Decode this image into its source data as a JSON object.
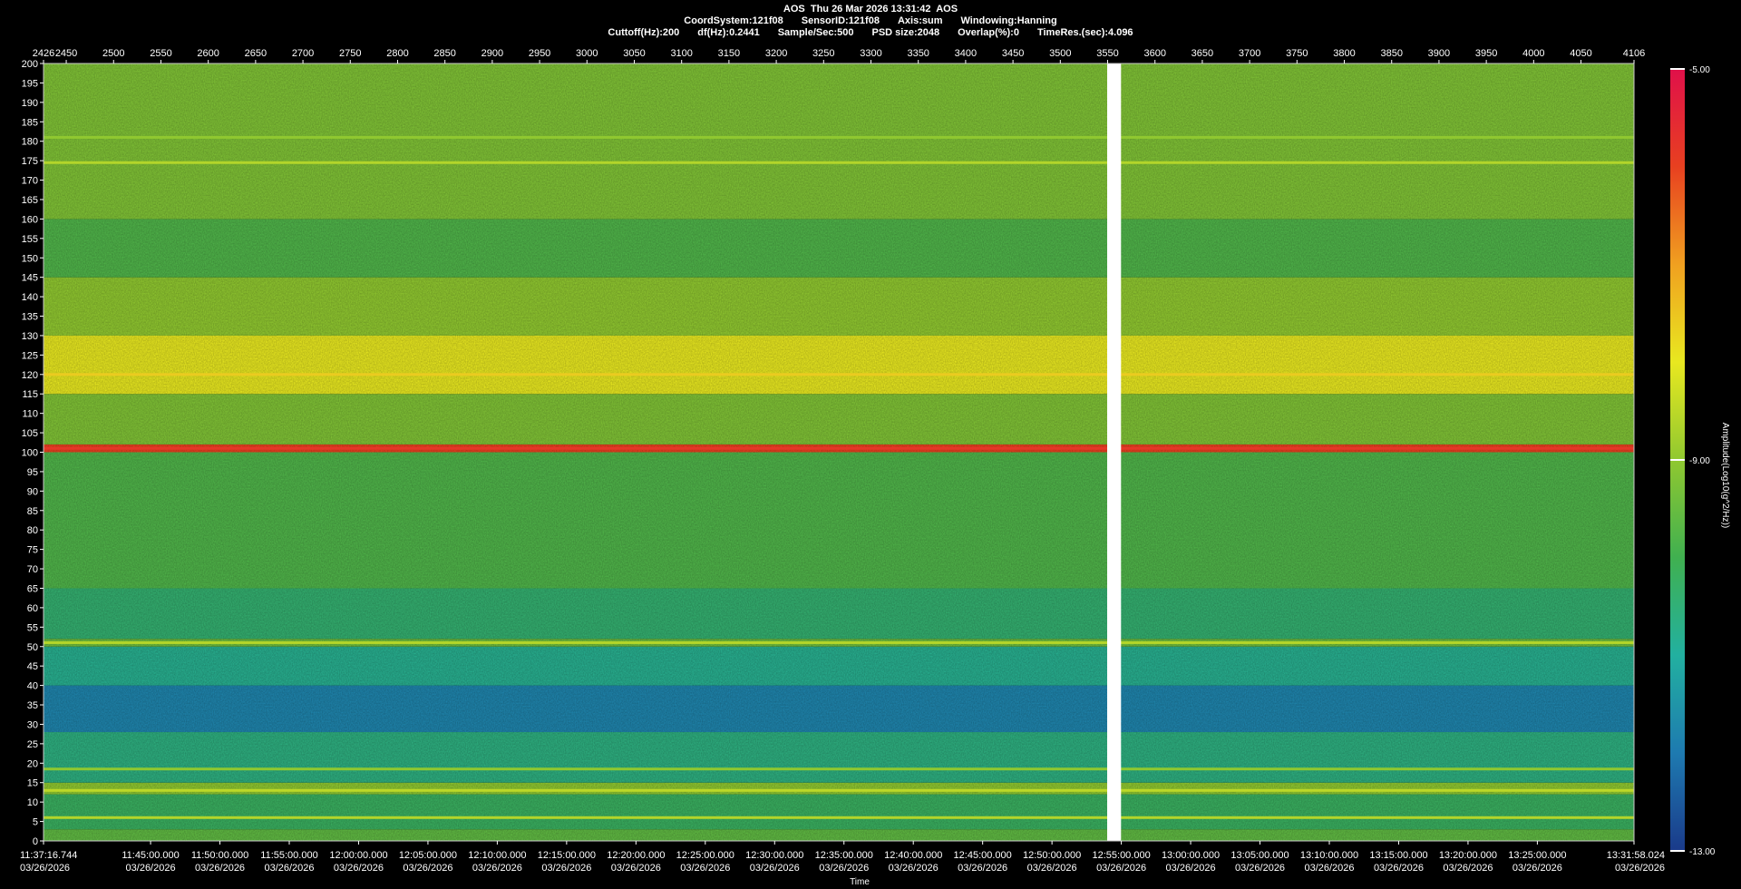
{
  "header": {
    "line1": "AOS  Thu 26 Mar 2026 13:31:42  AOS",
    "line2": [
      "CoordSystem:121f08",
      "SensorID:121f08",
      "Axis:sum",
      "Windowing:Hanning"
    ],
    "line3": [
      "Cuttoff(Hz):200",
      "df(Hz):0.2441",
      "Sample/Sec:500",
      "PSD size:2048",
      "Overlap(%):0",
      "TimeRes.(sec):4.096"
    ]
  },
  "chart_data": {
    "type": "heatmap",
    "title": "AOS  Thu 26 Mar 2026 13:31:42  AOS",
    "xlabel": "Time",
    "ylabel": "",
    "y_range": [
      0,
      200
    ],
    "y_ticks": [
      0,
      5,
      10,
      15,
      20,
      25,
      30,
      35,
      40,
      45,
      50,
      55,
      60,
      65,
      70,
      75,
      80,
      85,
      90,
      95,
      100,
      105,
      110,
      115,
      120,
      125,
      130,
      135,
      140,
      145,
      150,
      155,
      160,
      165,
      170,
      175,
      180,
      185,
      190,
      195,
      200
    ],
    "top_axis_range": [
      2426,
      4106
    ],
    "top_ticks": [
      "2426",
      "2450",
      "2500",
      "2550",
      "2600",
      "2650",
      "2700",
      "2750",
      "2800",
      "2850",
      "2900",
      "2950",
      "3000",
      "3050",
      "3100",
      "3150",
      "3200",
      "3250",
      "3300",
      "3350",
      "3400",
      "3450",
      "3500",
      "3550",
      "3600",
      "3650",
      "3700",
      "3750",
      "3800",
      "3850",
      "3900",
      "3950",
      "4000",
      "4050",
      "4106"
    ],
    "time_ticks": [
      {
        "time": "11:37:16.744",
        "date": "03/26/2026",
        "min": 0
      },
      {
        "time": "11:45:00.000",
        "date": "03/26/2026",
        "min": 7.72
      },
      {
        "time": "11:50:00.000",
        "date": "03/26/2026",
        "min": 12.72
      },
      {
        "time": "11:55:00.000",
        "date": "03/26/2026",
        "min": 17.72
      },
      {
        "time": "12:00:00.000",
        "date": "03/26/2026",
        "min": 22.72
      },
      {
        "time": "12:05:00.000",
        "date": "03/26/2026",
        "min": 27.72
      },
      {
        "time": "12:10:00.000",
        "date": "03/26/2026",
        "min": 32.72
      },
      {
        "time": "12:15:00.000",
        "date": "03/26/2026",
        "min": 37.72
      },
      {
        "time": "12:20:00.000",
        "date": "03/26/2026",
        "min": 42.72
      },
      {
        "time": "12:25:00.000",
        "date": "03/26/2026",
        "min": 47.72
      },
      {
        "time": "12:30:00.000",
        "date": "03/26/2026",
        "min": 52.72
      },
      {
        "time": "12:35:00.000",
        "date": "03/26/2026",
        "min": 57.72
      },
      {
        "time": "12:40:00.000",
        "date": "03/26/2026",
        "min": 62.72
      },
      {
        "time": "12:45:00.000",
        "date": "03/26/2026",
        "min": 67.72
      },
      {
        "time": "12:50:00.000",
        "date": "03/26/2026",
        "min": 72.72
      },
      {
        "time": "12:55:00.000",
        "date": "03/26/2026",
        "min": 77.72
      },
      {
        "time": "13:00:00.000",
        "date": "03/26/2026",
        "min": 82.72
      },
      {
        "time": "13:05:00.000",
        "date": "03/26/2026",
        "min": 87.72
      },
      {
        "time": "13:10:00.000",
        "date": "03/26/2026",
        "min": 92.72
      },
      {
        "time": "13:15:00.000",
        "date": "03/26/2026",
        "min": 97.72
      },
      {
        "time": "13:20:00.000",
        "date": "03/26/2026",
        "min": 102.72
      },
      {
        "time": "13:25:00.000",
        "date": "03/26/2026",
        "min": 107.72
      },
      {
        "time": "13:31:58.024",
        "date": "03/26/2026",
        "min": 114.69
      }
    ],
    "time_span_min": 114.69,
    "gap_minutes": [
      76.7,
      77.7
    ],
    "colorbar": {
      "label": "Amplitude(Log10(g^2/Hz))",
      "ticks": [
        "-5.00",
        "-9.00",
        "-13.00"
      ],
      "min": -13,
      "max": -5,
      "colors": [
        "#1a3a8a",
        "#1e7ab0",
        "#22b0a0",
        "#40b050",
        "#90c830",
        "#e8e820",
        "#f0a020",
        "#e84020",
        "#e0104a"
      ]
    },
    "bands": [
      {
        "from": 0,
        "to": 3,
        "level": -9.6
      },
      {
        "from": 3,
        "to": 12,
        "level": -10.2
      },
      {
        "from": 12,
        "to": 15,
        "level": -9.0
      },
      {
        "from": 15,
        "to": 28,
        "level": -10.6
      },
      {
        "from": 28,
        "to": 40,
        "level": -11.8
      },
      {
        "from": 40,
        "to": 50,
        "level": -10.8
      },
      {
        "from": 50,
        "to": 52,
        "level": -9.4
      },
      {
        "from": 52,
        "to": 65,
        "level": -10.4
      },
      {
        "from": 65,
        "to": 100,
        "level": -9.8
      },
      {
        "from": 100,
        "to": 102,
        "level": -6.0
      },
      {
        "from": 102,
        "to": 115,
        "level": -9.2
      },
      {
        "from": 115,
        "to": 130,
        "level": -8.0
      },
      {
        "from": 130,
        "to": 145,
        "level": -9.0
      },
      {
        "from": 145,
        "to": 160,
        "level": -9.8
      },
      {
        "from": 160,
        "to": 200,
        "level": -9.2
      }
    ],
    "lines": [
      {
        "freq": 6,
        "level": -8.6
      },
      {
        "freq": 13,
        "level": -8.5
      },
      {
        "freq": 18.5,
        "level": -9.0
      },
      {
        "freq": 51,
        "level": -8.6
      },
      {
        "freq": 101,
        "level": -5.8
      },
      {
        "freq": 120,
        "level": -7.6
      },
      {
        "freq": 174.5,
        "level": -8.6
      },
      {
        "freq": 181,
        "level": -9.0
      }
    ]
  }
}
